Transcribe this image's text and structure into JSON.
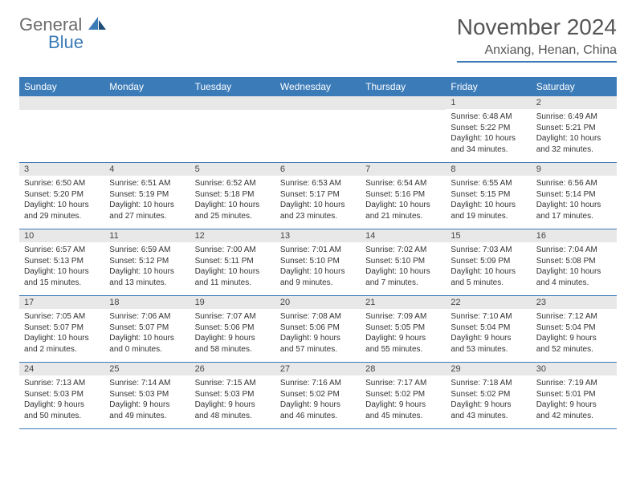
{
  "logo": {
    "text_gray": "General",
    "text_blue": "Blue",
    "icon_color_primary": "#3b7bb8",
    "icon_color_secondary": "#1f4e79"
  },
  "title": "November 2024",
  "location": "Anxiang, Henan, China",
  "colors": {
    "header_bg": "#3b7bb8",
    "header_text": "#ffffff",
    "day_bar_bg": "#e8e8e8",
    "text": "#333333",
    "border": "#3b7bb8"
  },
  "weekdays": [
    "Sunday",
    "Monday",
    "Tuesday",
    "Wednesday",
    "Thursday",
    "Friday",
    "Saturday"
  ],
  "weeks": [
    [
      null,
      null,
      null,
      null,
      null,
      {
        "n": "1",
        "sunrise": "Sunrise: 6:48 AM",
        "sunset": "Sunset: 5:22 PM",
        "daylight": "Daylight: 10 hours and 34 minutes."
      },
      {
        "n": "2",
        "sunrise": "Sunrise: 6:49 AM",
        "sunset": "Sunset: 5:21 PM",
        "daylight": "Daylight: 10 hours and 32 minutes."
      }
    ],
    [
      {
        "n": "3",
        "sunrise": "Sunrise: 6:50 AM",
        "sunset": "Sunset: 5:20 PM",
        "daylight": "Daylight: 10 hours and 29 minutes."
      },
      {
        "n": "4",
        "sunrise": "Sunrise: 6:51 AM",
        "sunset": "Sunset: 5:19 PM",
        "daylight": "Daylight: 10 hours and 27 minutes."
      },
      {
        "n": "5",
        "sunrise": "Sunrise: 6:52 AM",
        "sunset": "Sunset: 5:18 PM",
        "daylight": "Daylight: 10 hours and 25 minutes."
      },
      {
        "n": "6",
        "sunrise": "Sunrise: 6:53 AM",
        "sunset": "Sunset: 5:17 PM",
        "daylight": "Daylight: 10 hours and 23 minutes."
      },
      {
        "n": "7",
        "sunrise": "Sunrise: 6:54 AM",
        "sunset": "Sunset: 5:16 PM",
        "daylight": "Daylight: 10 hours and 21 minutes."
      },
      {
        "n": "8",
        "sunrise": "Sunrise: 6:55 AM",
        "sunset": "Sunset: 5:15 PM",
        "daylight": "Daylight: 10 hours and 19 minutes."
      },
      {
        "n": "9",
        "sunrise": "Sunrise: 6:56 AM",
        "sunset": "Sunset: 5:14 PM",
        "daylight": "Daylight: 10 hours and 17 minutes."
      }
    ],
    [
      {
        "n": "10",
        "sunrise": "Sunrise: 6:57 AM",
        "sunset": "Sunset: 5:13 PM",
        "daylight": "Daylight: 10 hours and 15 minutes."
      },
      {
        "n": "11",
        "sunrise": "Sunrise: 6:59 AM",
        "sunset": "Sunset: 5:12 PM",
        "daylight": "Daylight: 10 hours and 13 minutes."
      },
      {
        "n": "12",
        "sunrise": "Sunrise: 7:00 AM",
        "sunset": "Sunset: 5:11 PM",
        "daylight": "Daylight: 10 hours and 11 minutes."
      },
      {
        "n": "13",
        "sunrise": "Sunrise: 7:01 AM",
        "sunset": "Sunset: 5:10 PM",
        "daylight": "Daylight: 10 hours and 9 minutes."
      },
      {
        "n": "14",
        "sunrise": "Sunrise: 7:02 AM",
        "sunset": "Sunset: 5:10 PM",
        "daylight": "Daylight: 10 hours and 7 minutes."
      },
      {
        "n": "15",
        "sunrise": "Sunrise: 7:03 AM",
        "sunset": "Sunset: 5:09 PM",
        "daylight": "Daylight: 10 hours and 5 minutes."
      },
      {
        "n": "16",
        "sunrise": "Sunrise: 7:04 AM",
        "sunset": "Sunset: 5:08 PM",
        "daylight": "Daylight: 10 hours and 4 minutes."
      }
    ],
    [
      {
        "n": "17",
        "sunrise": "Sunrise: 7:05 AM",
        "sunset": "Sunset: 5:07 PM",
        "daylight": "Daylight: 10 hours and 2 minutes."
      },
      {
        "n": "18",
        "sunrise": "Sunrise: 7:06 AM",
        "sunset": "Sunset: 5:07 PM",
        "daylight": "Daylight: 10 hours and 0 minutes."
      },
      {
        "n": "19",
        "sunrise": "Sunrise: 7:07 AM",
        "sunset": "Sunset: 5:06 PM",
        "daylight": "Daylight: 9 hours and 58 minutes."
      },
      {
        "n": "20",
        "sunrise": "Sunrise: 7:08 AM",
        "sunset": "Sunset: 5:06 PM",
        "daylight": "Daylight: 9 hours and 57 minutes."
      },
      {
        "n": "21",
        "sunrise": "Sunrise: 7:09 AM",
        "sunset": "Sunset: 5:05 PM",
        "daylight": "Daylight: 9 hours and 55 minutes."
      },
      {
        "n": "22",
        "sunrise": "Sunrise: 7:10 AM",
        "sunset": "Sunset: 5:04 PM",
        "daylight": "Daylight: 9 hours and 53 minutes."
      },
      {
        "n": "23",
        "sunrise": "Sunrise: 7:12 AM",
        "sunset": "Sunset: 5:04 PM",
        "daylight": "Daylight: 9 hours and 52 minutes."
      }
    ],
    [
      {
        "n": "24",
        "sunrise": "Sunrise: 7:13 AM",
        "sunset": "Sunset: 5:03 PM",
        "daylight": "Daylight: 9 hours and 50 minutes."
      },
      {
        "n": "25",
        "sunrise": "Sunrise: 7:14 AM",
        "sunset": "Sunset: 5:03 PM",
        "daylight": "Daylight: 9 hours and 49 minutes."
      },
      {
        "n": "26",
        "sunrise": "Sunrise: 7:15 AM",
        "sunset": "Sunset: 5:03 PM",
        "daylight": "Daylight: 9 hours and 48 minutes."
      },
      {
        "n": "27",
        "sunrise": "Sunrise: 7:16 AM",
        "sunset": "Sunset: 5:02 PM",
        "daylight": "Daylight: 9 hours and 46 minutes."
      },
      {
        "n": "28",
        "sunrise": "Sunrise: 7:17 AM",
        "sunset": "Sunset: 5:02 PM",
        "daylight": "Daylight: 9 hours and 45 minutes."
      },
      {
        "n": "29",
        "sunrise": "Sunrise: 7:18 AM",
        "sunset": "Sunset: 5:02 PM",
        "daylight": "Daylight: 9 hours and 43 minutes."
      },
      {
        "n": "30",
        "sunrise": "Sunrise: 7:19 AM",
        "sunset": "Sunset: 5:01 PM",
        "daylight": "Daylight: 9 hours and 42 minutes."
      }
    ]
  ]
}
